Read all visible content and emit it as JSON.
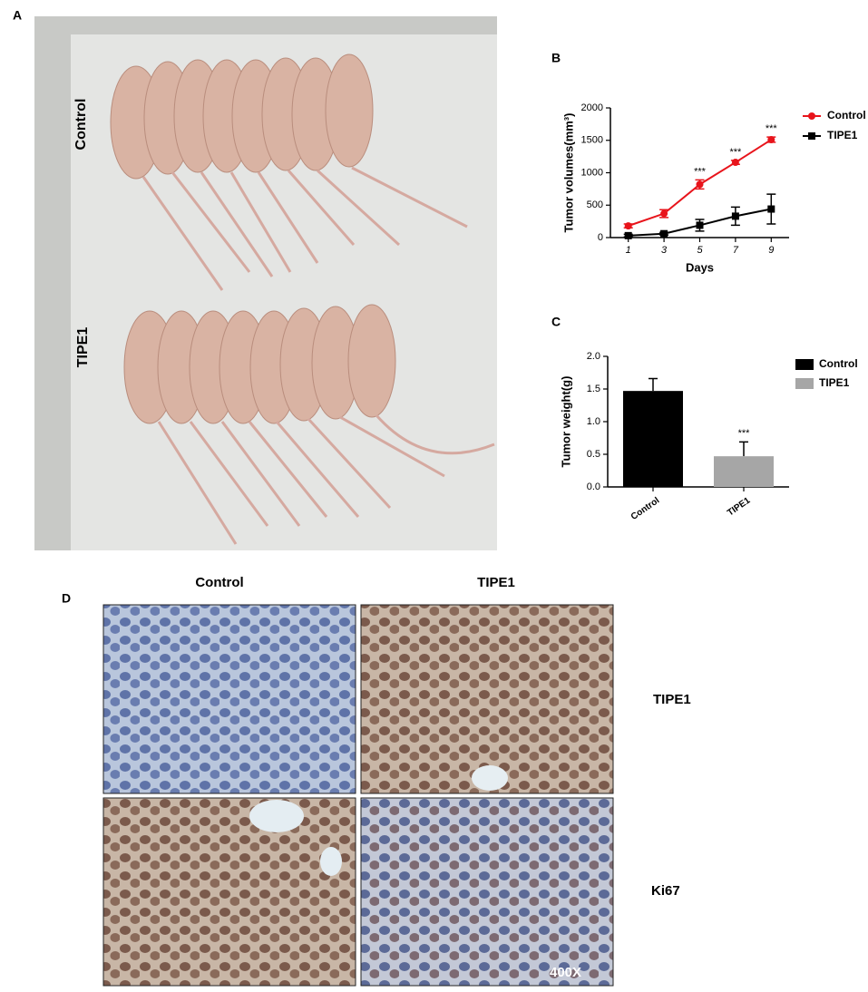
{
  "panel_a": {
    "letter": "A",
    "groups": [
      "Control",
      "TIPE1"
    ]
  },
  "panel_b": {
    "letter": "B"
  },
  "panel_c": {
    "letter": "C"
  },
  "panel_d": {
    "letter": "D",
    "columns": [
      "Control",
      "TIPE1"
    ],
    "rows": [
      "TIPE1",
      "Ki67"
    ],
    "magnification": "400X"
  },
  "chart_data": [
    {
      "type": "line",
      "x_label": "Days",
      "y_label": "Tumor volumes(mm³)",
      "x": [
        1,
        3,
        5,
        7,
        9
      ],
      "xlim": [
        0,
        10
      ],
      "xticks": [
        1,
        3,
        5,
        7,
        9
      ],
      "ylim": [
        0,
        2000
      ],
      "yticks": [
        0,
        500,
        1000,
        1500,
        2000
      ],
      "series": [
        {
          "name": "Control",
          "color": "#e8141b",
          "marker": "circle",
          "values": [
            180,
            370,
            820,
            1160,
            1510
          ],
          "errors": [
            30,
            60,
            70,
            30,
            40
          ]
        },
        {
          "name": "TIPE1",
          "color": "#000000",
          "marker": "square",
          "values": [
            30,
            60,
            190,
            330,
            440
          ],
          "errors": [
            20,
            20,
            90,
            140,
            230
          ]
        }
      ],
      "significance": [
        null,
        null,
        "***",
        "***",
        "***"
      ]
    },
    {
      "type": "bar",
      "y_label": "Tumor weight(g)",
      "categories": [
        "Control",
        "TIPE1"
      ],
      "values": [
        1.47,
        0.47
      ],
      "errors": [
        0.19,
        0.22
      ],
      "colors": [
        "#000000",
        "#a6a6a6"
      ],
      "significance": [
        null,
        "***"
      ],
      "ylim": [
        0,
        2.0
      ],
      "yticks": [
        {
          "value": 0,
          "label": "0.0"
        },
        0.5,
        {
          "value": 1,
          "label": "1.0"
        },
        1.5,
        {
          "value": 2,
          "label": "2.0"
        }
      ]
    }
  ]
}
